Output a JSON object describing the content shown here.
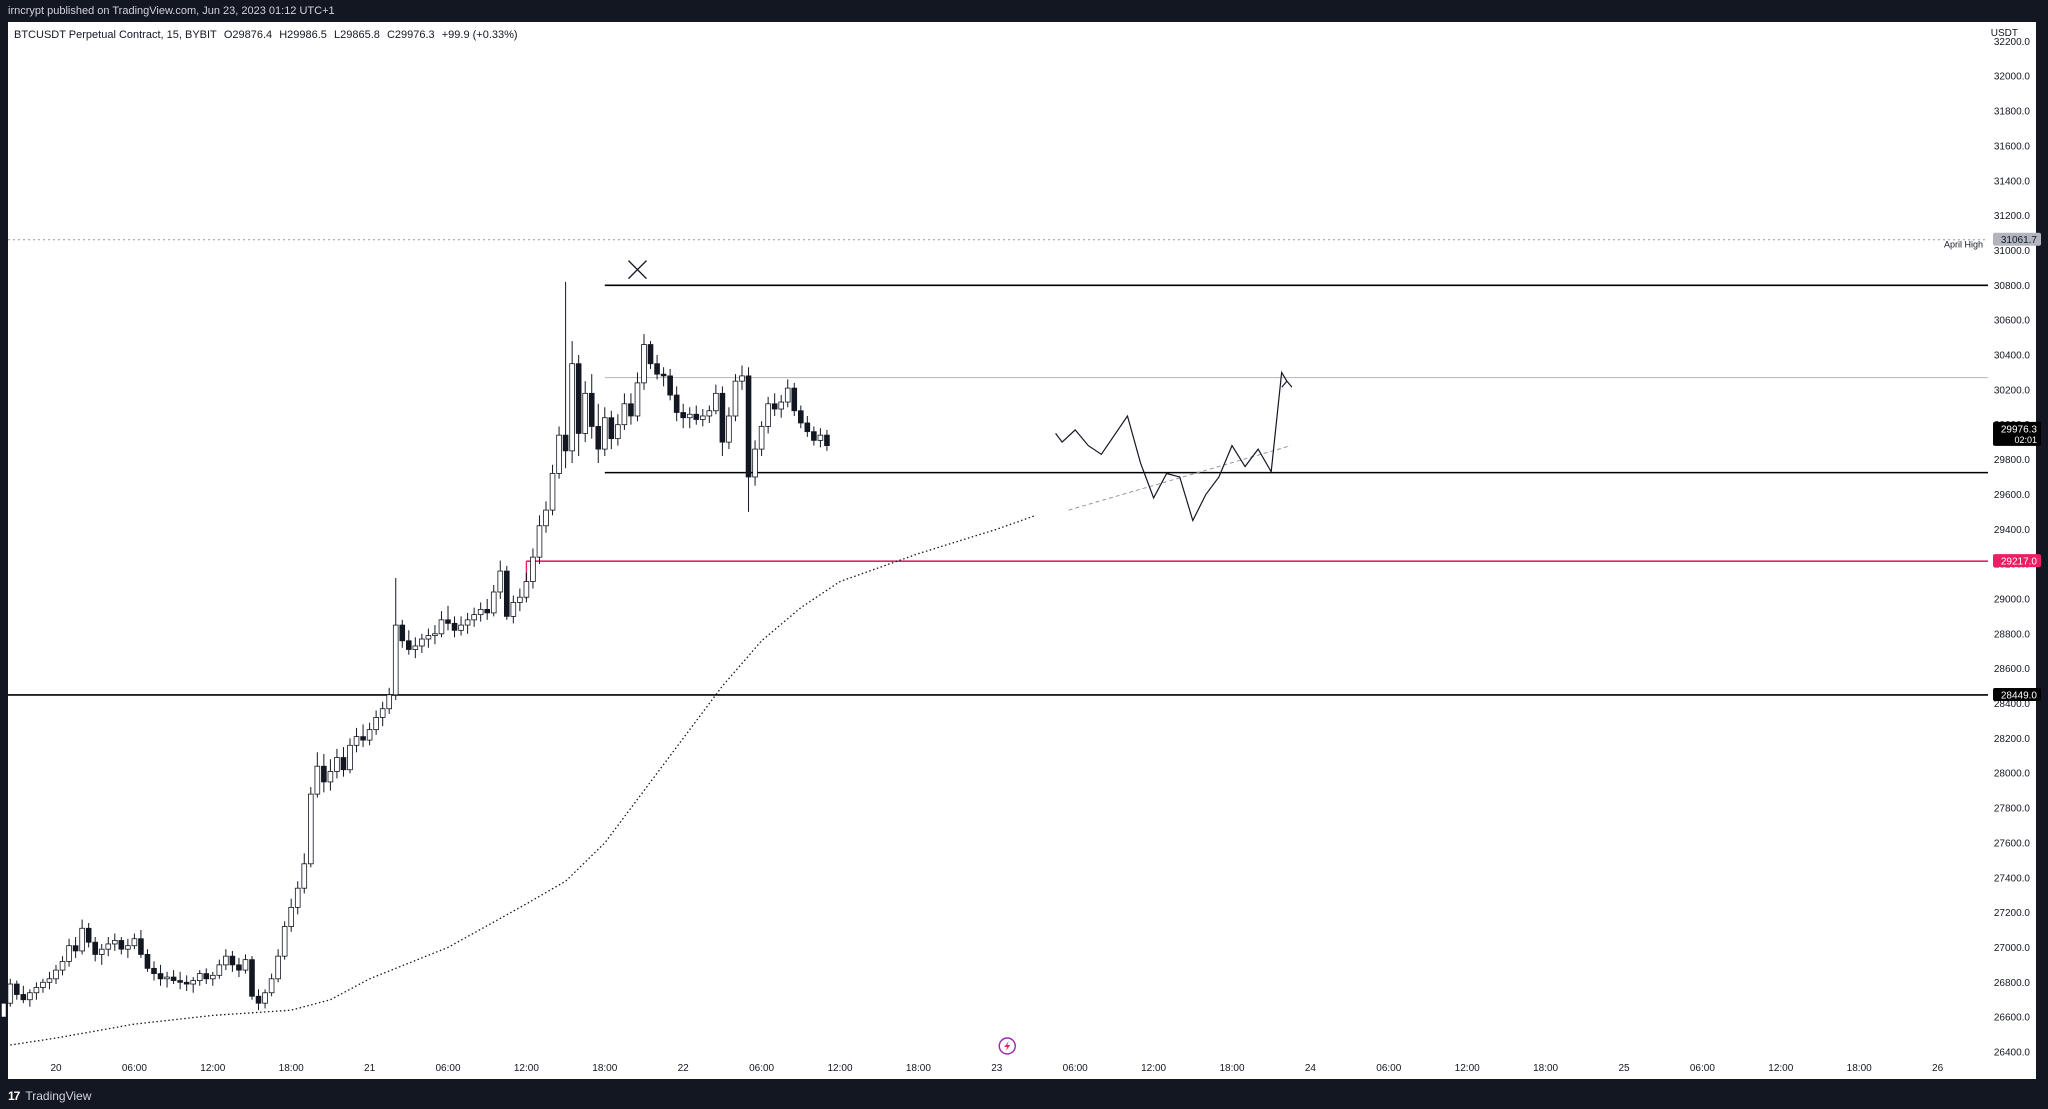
{
  "header": {
    "published_text": "irncrypt published on TradingView.com, Jun 23, 2023 01:12 UTC+1"
  },
  "footer": {
    "brand": "TradingView",
    "brand_mark": "17"
  },
  "legend": {
    "symbol": "BTCUSDT Perpetual Contract, 15, BYBIT",
    "open": "O29876.4",
    "high": "H29986.5",
    "low": "L29865.8",
    "close": "C29976.3",
    "change": "+99.9 (+0.33%)"
  },
  "chart_data": {
    "type": "candlestick",
    "currency_label": "USDT",
    "y_ticks": [
      26400,
      26600,
      26800,
      27000,
      27200,
      27400,
      27600,
      27800,
      28000,
      28200,
      28400,
      28600,
      28800,
      29000,
      29200,
      29400,
      29600,
      29800,
      30000,
      30200,
      30400,
      30600,
      30800,
      31000,
      31200,
      31400,
      31600,
      31800,
      32000,
      32200
    ],
    "y_tick_labels": [
      "26400.0",
      "26600.0",
      "26800.0",
      "27000.0",
      "27200.0",
      "27400.0",
      "27600.0",
      "27800.0",
      "28000.0",
      "28200.0",
      "28400.0",
      "28600.0",
      "28800.0",
      "29000.0",
      "29200.0",
      "29400.0",
      "29600.0",
      "29800.0",
      "30000.0",
      "30200.0",
      "30400.0",
      "30600.0",
      "30800.0",
      "31000.0",
      "31200.0",
      "31400.0",
      "31600.0",
      "31800.0",
      "32000.0",
      "32200.0"
    ],
    "x_ticks": [
      "20",
      "06:00",
      "12:00",
      "18:00",
      "21",
      "06:00",
      "12:00",
      "18:00",
      "22",
      "06:00",
      "12:00",
      "18:00",
      "23",
      "06:00",
      "12:00",
      "18:00",
      "24",
      "06:00",
      "12:00",
      "18:00",
      "25",
      "06:00",
      "12:00",
      "18:00",
      "26"
    ],
    "price_tags": [
      {
        "label": "31061.7",
        "value": 31061.7,
        "bg": "#b2b5be",
        "fg": "#131722"
      },
      {
        "label": "29976.3",
        "sub": "02:01",
        "value": 29976.3,
        "bg": "#000000",
        "fg": "#ffffff"
      },
      {
        "label": "29217.0",
        "value": 29217.0,
        "bg": "#e91e63",
        "fg": "#ffffff"
      },
      {
        "label": "28449.0",
        "value": 28449.0,
        "bg": "#000000",
        "fg": "#ffffff"
      }
    ],
    "annotations": [
      {
        "text": "April High",
        "value": 31061.7
      }
    ],
    "levels": [
      {
        "name": "range-high",
        "value": 30800,
        "color": "#000000",
        "from_hour": 42
      },
      {
        "name": "range-mid",
        "value": 30270,
        "color": "#b2b5be",
        "from_hour": 42
      },
      {
        "name": "range-low",
        "value": 29725,
        "color": "#000000",
        "from_hour": 42
      },
      {
        "name": "pink-level",
        "value": 29217,
        "color": "#e91e63",
        "from_hour": 36
      },
      {
        "name": "black-level",
        "value": 28449,
        "color": "#000000",
        "from_hour": -4
      },
      {
        "name": "april-high",
        "value": 31061.7,
        "color": "#9598a1",
        "dotted": true,
        "from_hour": -4
      }
    ],
    "ma_points": [
      [
        -3.5,
        26440
      ],
      [
        0,
        26480
      ],
      [
        6,
        26560
      ],
      [
        12,
        26610
      ],
      [
        18,
        26640
      ],
      [
        21,
        26700
      ],
      [
        24,
        26820
      ],
      [
        30,
        27000
      ],
      [
        36,
        27250
      ],
      [
        39,
        27380
      ],
      [
        42,
        27600
      ],
      [
        45,
        27900
      ],
      [
        48,
        28200
      ],
      [
        51,
        28500
      ],
      [
        54,
        28760
      ],
      [
        57,
        28950
      ],
      [
        60,
        29100
      ],
      [
        63,
        29180
      ],
      [
        66,
        29260
      ],
      [
        69,
        29330
      ],
      [
        72,
        29400
      ],
      [
        75,
        29480
      ]
    ],
    "projection": [
      [
        76.5,
        29950
      ],
      [
        77,
        29900
      ],
      [
        78,
        29970
      ],
      [
        79,
        29880
      ],
      [
        80,
        29830
      ],
      [
        81,
        29940
      ],
      [
        82,
        30050
      ],
      [
        83,
        29780
      ],
      [
        84,
        29580
      ],
      [
        85,
        29720
      ],
      [
        86,
        29700
      ],
      [
        87,
        29450
      ],
      [
        88,
        29600
      ],
      [
        89,
        29700
      ],
      [
        90,
        29880
      ],
      [
        91,
        29760
      ],
      [
        92,
        29860
      ],
      [
        93,
        29730
      ],
      [
        93.8,
        30300
      ],
      [
        94.2,
        30250
      ]
    ],
    "trendline": [
      [
        77.5,
        29510
      ],
      [
        94.5,
        29880
      ]
    ],
    "x_marker": {
      "hour": 44.5,
      "value": 30890
    },
    "candles": [
      [
        -4,
        26600,
        26680,
        26560,
        26680
      ],
      [
        -3.5,
        26680,
        26820,
        26660,
        26790
      ],
      [
        -3,
        26790,
        26810,
        26700,
        26730
      ],
      [
        -2.5,
        26730,
        26780,
        26680,
        26700
      ],
      [
        -2,
        26700,
        26760,
        26660,
        26740
      ],
      [
        -1.5,
        26740,
        26800,
        26700,
        26770
      ],
      [
        -1,
        26770,
        26820,
        26740,
        26800
      ],
      [
        -0.5,
        26800,
        26860,
        26760,
        26820
      ],
      [
        0,
        26820,
        26900,
        26790,
        26870
      ],
      [
        0.5,
        26870,
        26950,
        26840,
        26920
      ],
      [
        1,
        26920,
        27050,
        26890,
        27010
      ],
      [
        1.5,
        27010,
        27060,
        26940,
        26980
      ],
      [
        2,
        26980,
        27160,
        26960,
        27110
      ],
      [
        2.5,
        27110,
        27140,
        27000,
        27030
      ],
      [
        3,
        27030,
        27060,
        26920,
        26960
      ],
      [
        3.5,
        26960,
        27020,
        26900,
        26990
      ],
      [
        4,
        26990,
        27060,
        26950,
        27020
      ],
      [
        4.5,
        27020,
        27080,
        26980,
        27040
      ],
      [
        5,
        27040,
        27060,
        26960,
        26990
      ],
      [
        5.5,
        26990,
        27050,
        26940,
        27010
      ],
      [
        6,
        27010,
        27080,
        26990,
        27050
      ],
      [
        6.5,
        27050,
        27100,
        26940,
        26960
      ],
      [
        7,
        26960,
        26990,
        26860,
        26880
      ],
      [
        7.5,
        26880,
        26920,
        26810,
        26850
      ],
      [
        8,
        26850,
        26900,
        26780,
        26820
      ],
      [
        8.5,
        26820,
        26860,
        26770,
        26830
      ],
      [
        9,
        26830,
        26870,
        26790,
        26810
      ],
      [
        9.5,
        26810,
        26860,
        26760,
        26800
      ],
      [
        10,
        26800,
        26840,
        26750,
        26790
      ],
      [
        10.5,
        26790,
        26830,
        26740,
        26810
      ],
      [
        11,
        26810,
        26870,
        26780,
        26850
      ],
      [
        11.5,
        26850,
        26880,
        26790,
        26820
      ],
      [
        12,
        26820,
        26860,
        26780,
        26840
      ],
      [
        12.5,
        26840,
        26930,
        26820,
        26900
      ],
      [
        13,
        26900,
        26990,
        26870,
        26950
      ],
      [
        13.5,
        26950,
        26980,
        26860,
        26900
      ],
      [
        14,
        26900,
        26940,
        26830,
        26870
      ],
      [
        14.5,
        26870,
        26960,
        26850,
        26930
      ],
      [
        15,
        26930,
        26950,
        26700,
        26720
      ],
      [
        15.5,
        26720,
        26760,
        26640,
        26680
      ],
      [
        16,
        26680,
        26760,
        26650,
        26740
      ],
      [
        16.5,
        26740,
        26850,
        26720,
        26820
      ],
      [
        17,
        26820,
        26990,
        26800,
        26950
      ],
      [
        17.5,
        26950,
        27150,
        26930,
        27120
      ],
      [
        18,
        27120,
        27280,
        27090,
        27230
      ],
      [
        18.5,
        27230,
        27380,
        27190,
        27340
      ],
      [
        19,
        27340,
        27540,
        27310,
        27480
      ],
      [
        19.5,
        27480,
        27920,
        27460,
        27880
      ],
      [
        20,
        27880,
        28120,
        27860,
        28040
      ],
      [
        20.5,
        28040,
        28110,
        27890,
        27950
      ],
      [
        21,
        27950,
        28080,
        27900,
        28010
      ],
      [
        21.5,
        28010,
        28140,
        27970,
        28090
      ],
      [
        22,
        28090,
        28150,
        27980,
        28020
      ],
      [
        22.5,
        28020,
        28200,
        28000,
        28160
      ],
      [
        23,
        28160,
        28260,
        28120,
        28210
      ],
      [
        23.5,
        28210,
        28280,
        28150,
        28190
      ],
      [
        24,
        28190,
        28290,
        28160,
        28250
      ],
      [
        24.5,
        28250,
        28360,
        28220,
        28320
      ],
      [
        25,
        28320,
        28410,
        28270,
        28370
      ],
      [
        25.5,
        28370,
        28490,
        28340,
        28450
      ],
      [
        26,
        28450,
        29120,
        28420,
        28850
      ],
      [
        26.5,
        28850,
        28880,
        28720,
        28760
      ],
      [
        27,
        28760,
        28820,
        28680,
        28710
      ],
      [
        27.5,
        28710,
        28780,
        28660,
        28730
      ],
      [
        28,
        28730,
        28800,
        28690,
        28770
      ],
      [
        28.5,
        28770,
        28830,
        28720,
        28790
      ],
      [
        29,
        28790,
        28850,
        28740,
        28800
      ],
      [
        29.5,
        28800,
        28930,
        28780,
        28880
      ],
      [
        30,
        28880,
        28960,
        28820,
        28860
      ],
      [
        30.5,
        28860,
        28900,
        28780,
        28820
      ],
      [
        31,
        28820,
        28900,
        28790,
        28850
      ],
      [
        31.5,
        28850,
        28920,
        28800,
        28880
      ],
      [
        32,
        28880,
        28950,
        28840,
        28910
      ],
      [
        32.5,
        28910,
        28980,
        28870,
        28940
      ],
      [
        33,
        28940,
        29000,
        28880,
        28920
      ],
      [
        33.5,
        28920,
        29080,
        28900,
        29040
      ],
      [
        34,
        29040,
        29220,
        29000,
        29160
      ],
      [
        34.5,
        29160,
        29190,
        28880,
        28900
      ],
      [
        35,
        28900,
        29020,
        28860,
        28980
      ],
      [
        35.5,
        28980,
        29060,
        28930,
        29010
      ],
      [
        36,
        29010,
        29150,
        28980,
        29100
      ],
      [
        36.5,
        29100,
        29290,
        29060,
        29240
      ],
      [
        37,
        29240,
        29480,
        29200,
        29420
      ],
      [
        37.5,
        29420,
        29560,
        29380,
        29510
      ],
      [
        38,
        29510,
        29770,
        29480,
        29720
      ],
      [
        38.5,
        29720,
        29990,
        29690,
        29940
      ],
      [
        39,
        29940,
        30820,
        29750,
        29850
      ],
      [
        39.5,
        29850,
        30480,
        29780,
        30350
      ],
      [
        40,
        30350,
        30400,
        29820,
        29950
      ],
      [
        40.5,
        29950,
        30250,
        29900,
        30180
      ],
      [
        41,
        30180,
        30290,
        29920,
        29990
      ],
      [
        41.5,
        29990,
        30120,
        29780,
        29860
      ],
      [
        42,
        29860,
        30100,
        29820,
        30040
      ],
      [
        42.5,
        30040,
        30080,
        29860,
        29920
      ],
      [
        43,
        29920,
        30060,
        29880,
        30000
      ],
      [
        43.5,
        30000,
        30180,
        29970,
        30120
      ],
      [
        44,
        30120,
        30180,
        30000,
        30050
      ],
      [
        44.5,
        30050,
        30300,
        30020,
        30240
      ],
      [
        45,
        30240,
        30520,
        30200,
        30460
      ],
      [
        45.5,
        30460,
        30480,
        30320,
        30350
      ],
      [
        46,
        30350,
        30400,
        30260,
        30290
      ],
      [
        46.5,
        30290,
        30330,
        30220,
        30280
      ],
      [
        47,
        30280,
        30320,
        30140,
        30170
      ],
      [
        47.5,
        30170,
        30220,
        30020,
        30070
      ],
      [
        48,
        30070,
        30120,
        29980,
        30040
      ],
      [
        48.5,
        30040,
        30100,
        29980,
        30060
      ],
      [
        49,
        30060,
        30110,
        30000,
        30030
      ],
      [
        49.5,
        30030,
        30090,
        29990,
        30050
      ],
      [
        50,
        30050,
        30110,
        30010,
        30080
      ],
      [
        50.5,
        30080,
        30230,
        30060,
        30180
      ],
      [
        51,
        30180,
        30220,
        29820,
        29900
      ],
      [
        51.5,
        29900,
        30100,
        29860,
        30050
      ],
      [
        52,
        30050,
        30290,
        30020,
        30250
      ],
      [
        52.5,
        30250,
        30340,
        30200,
        30280
      ],
      [
        53,
        30280,
        30330,
        29500,
        29700
      ],
      [
        53.5,
        29700,
        29910,
        29650,
        29860
      ],
      [
        54,
        29860,
        30020,
        29820,
        29990
      ],
      [
        54.5,
        29990,
        30160,
        29950,
        30120
      ],
      [
        55,
        30120,
        30180,
        30050,
        30090
      ],
      [
        55.5,
        30090,
        30170,
        30040,
        30130
      ],
      [
        56,
        30130,
        30260,
        30100,
        30210
      ],
      [
        56.5,
        30210,
        30240,
        30050,
        30080
      ],
      [
        57,
        30080,
        30110,
        29980,
        30010
      ],
      [
        57.5,
        30010,
        30050,
        29930,
        29960
      ],
      [
        58,
        29960,
        29990,
        29880,
        29910
      ],
      [
        58.5,
        29910,
        29980,
        29870,
        29940
      ],
      [
        59,
        29940,
        29970,
        29850,
        29880
      ]
    ]
  }
}
